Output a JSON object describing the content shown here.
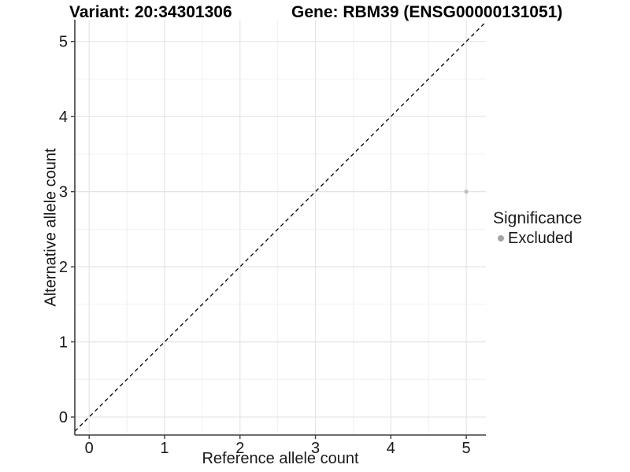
{
  "chart_data": {
    "type": "scatter",
    "title_left": "Variant: 20:34301306",
    "title_right": "Gene: RBM39 (ENSG00000131051)",
    "xlabel": "Reference allele count",
    "ylabel": "Alternative allele count",
    "xlim": [
      -0.19,
      5.26
    ],
    "ylim": [
      -0.24,
      5.29
    ],
    "xticks": [
      0,
      1,
      2,
      3,
      4,
      5
    ],
    "yticks": [
      0,
      1,
      2,
      3,
      4,
      5
    ],
    "minor_grid_step": 0.5,
    "grid": "major+minor",
    "series": [
      {
        "name": "Excluded",
        "color": "#bebebe",
        "points": [
          {
            "x": 5,
            "y": 3
          }
        ]
      }
    ],
    "reference_line": {
      "style": "dashed",
      "slope": 1,
      "intercept": 0,
      "color": "#000000"
    },
    "legend": {
      "title": "Significance",
      "position": "right",
      "items": [
        {
          "label": "Excluded",
          "color": "#a4a4a4"
        }
      ]
    },
    "colors": {
      "grid_major": "#e4e4e4",
      "grid_minor": "#f0f0f0",
      "axis_line": "#3d3d3d",
      "tick_text": "#1a1a1a",
      "title_text": "#000000"
    }
  }
}
